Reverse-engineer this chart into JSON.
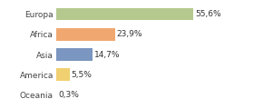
{
  "categories": [
    "Europa",
    "Africa",
    "Asia",
    "America",
    "Oceania"
  ],
  "values": [
    55.6,
    23.9,
    14.7,
    5.5,
    0.3
  ],
  "labels": [
    "55,6%",
    "23,9%",
    "14,7%",
    "5,5%",
    "0,3%"
  ],
  "bar_colors": [
    "#b5c98e",
    "#f0a870",
    "#7b96c0",
    "#f0d070",
    "#cccccc"
  ],
  "background_color": "#ffffff",
  "xlim": [
    0,
    68
  ],
  "label_fontsize": 6.5,
  "tick_fontsize": 6.5,
  "bar_height": 0.6
}
